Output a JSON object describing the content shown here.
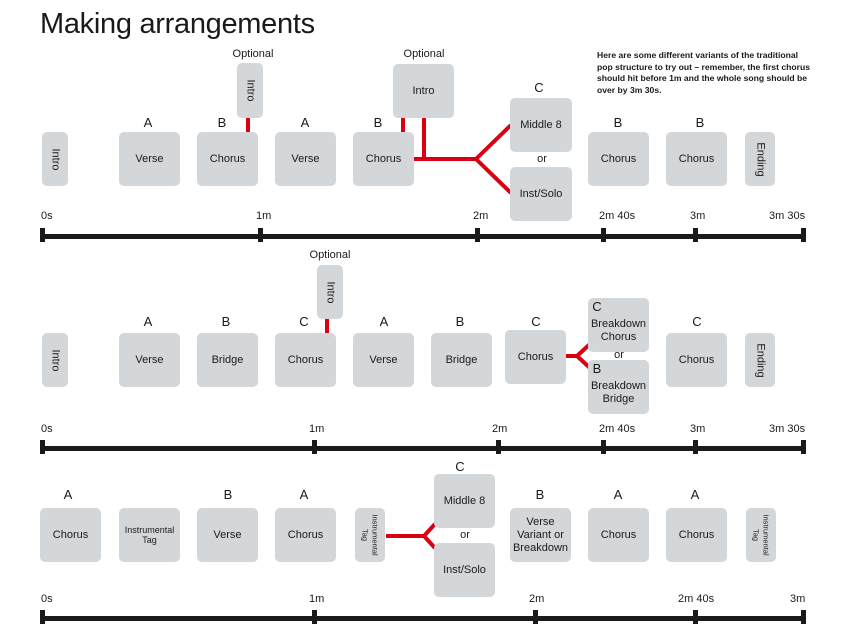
{
  "title": "Making arrangements",
  "note": "Here are some different variants of the traditional pop structure to try out – remember, the first chorus should hit before 1m and the whole song should be over by 3m 30s.",
  "row1": {
    "boxes": [
      "Intro",
      "Verse",
      "Chorus",
      "Verse",
      "Chorus",
      "Middle 8",
      "Inst/Solo",
      "Chorus",
      "Chorus",
      "Ending"
    ],
    "opt_intro_a": "Intro",
    "opt_intro_b": "Intro",
    "optional_a": "Optional",
    "optional_b": "Optional",
    "or": "or",
    "letters": [
      "A",
      "B",
      "A",
      "B",
      "C",
      "B",
      "B"
    ],
    "ticks": [
      "0s",
      "1m",
      "2m",
      "2m 40s",
      "3m",
      "3m 30s"
    ]
  },
  "row2": {
    "boxes": [
      "Intro",
      "Verse",
      "Bridge",
      "Chorus",
      "Verse",
      "Bridge",
      "Chorus",
      "Breakdown Chorus",
      "Breakdown Bridge",
      "Chorus",
      "Ending"
    ],
    "opt_intro": "Intro",
    "optional": "Optional",
    "or": "or",
    "letters": [
      "A",
      "B",
      "C",
      "A",
      "B",
      "C",
      "C",
      "B",
      "C"
    ],
    "ticks": [
      "0s",
      "1m",
      "2m",
      "2m 40s",
      "3m",
      "3m 30s"
    ]
  },
  "row3": {
    "boxes": [
      "Chorus",
      "Instrumental Tag",
      "Verse",
      "Chorus",
      "Instrumental Tag",
      "Middle 8",
      "Inst/Solo",
      "Verse Variant or Breakdown",
      "Chorus",
      "Chorus",
      "Instrumental Tag"
    ],
    "or": "or",
    "letters": [
      "A",
      "B",
      "A",
      "C",
      "B",
      "A",
      "A"
    ],
    "ticks": [
      "0s",
      "1m",
      "2m",
      "2m 40s",
      "3m"
    ]
  },
  "colors": {
    "box": "#d4d7d9",
    "accent": "#d90012",
    "timeline": "#1a1a1a"
  }
}
